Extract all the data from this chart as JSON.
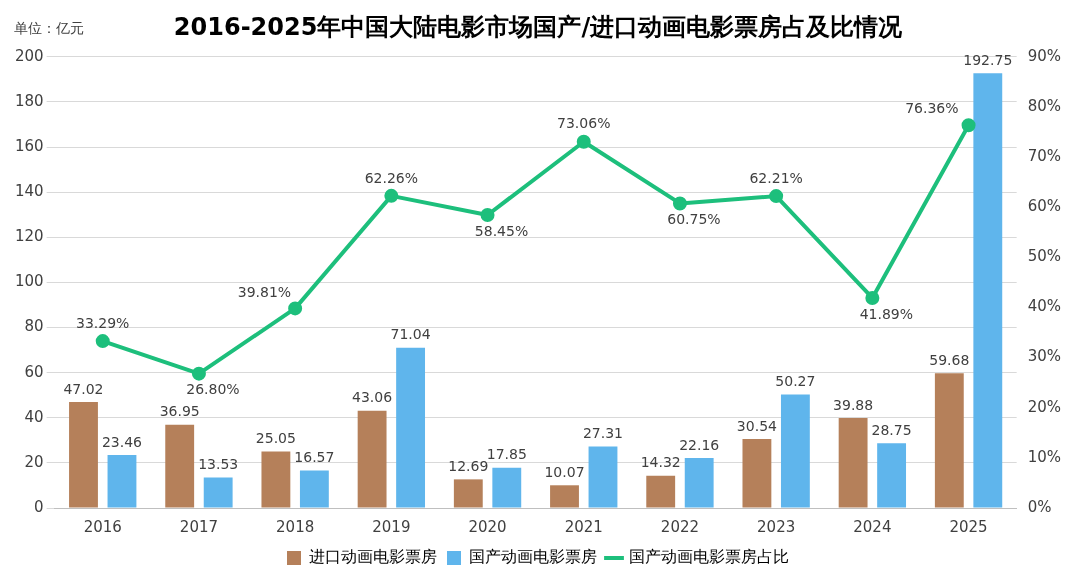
{
  "chart_data": {
    "type": "bar",
    "title": "2016-2025年中国大陆电影市场国产/进口动画电影票房占及比情况",
    "ylabel": "单位：亿元",
    "categories": [
      "2016",
      "2017",
      "2018",
      "2019",
      "2020",
      "2021",
      "2022",
      "2023",
      "2024",
      "2025"
    ],
    "series": [
      {
        "name": "进口动画电影票房",
        "color": "#b5805a",
        "values": [
          47.02,
          36.95,
          25.05,
          43.06,
          12.69,
          10.07,
          14.32,
          30.54,
          39.88,
          59.68
        ],
        "value_labels": [
          "47.02",
          "36.95",
          "25.05",
          "43.06",
          "12.69",
          "10.07",
          "14.32",
          "30.54",
          "39.88",
          "59.68"
        ]
      },
      {
        "name": "国产动画电影票房",
        "color": "#5fb5ec",
        "values": [
          23.46,
          13.53,
          16.57,
          71.04,
          17.85,
          27.31,
          22.16,
          50.27,
          28.75,
          192.75
        ],
        "value_labels": [
          "23.46",
          "13.53",
          "16.57",
          "71.04",
          "17.85",
          "27.31",
          "22.16",
          "50.27",
          "28.75",
          "192.75"
        ]
      },
      {
        "name": "国产动画电影票房占比",
        "type": "line",
        "axis": "y2",
        "color": "#1dbf7c",
        "values": [
          33.29,
          26.8,
          39.81,
          62.26,
          58.45,
          73.06,
          60.75,
          62.21,
          41.89,
          76.36
        ],
        "value_labels": [
          "33.29%",
          "26.80%",
          "39.81%",
          "62.26%",
          "58.45%",
          "73.06%",
          "60.75%",
          "62.21%",
          "41.89%",
          "76.36%"
        ]
      }
    ],
    "ylim": [
      0,
      200
    ],
    "yticks": [
      0,
      20,
      40,
      60,
      80,
      100,
      120,
      140,
      160,
      180,
      200
    ],
    "y2lim": [
      0,
      90
    ],
    "y2ticks": [
      {
        "value": 0,
        "label": "0%"
      },
      {
        "value": 10,
        "label": "10%"
      },
      {
        "value": 20,
        "label": "20%"
      },
      {
        "value": 30,
        "label": "30%"
      },
      {
        "value": 40,
        "label": "40%"
      },
      {
        "value": 50,
        "label": "50%"
      },
      {
        "value": 60,
        "label": "60%"
      },
      {
        "value": 70,
        "label": "70%"
      },
      {
        "value": 80,
        "label": "80%"
      },
      {
        "value": 90,
        "label": "90%"
      }
    ],
    "grid": "y",
    "legend": "bottom",
    "marker": "circle",
    "line_style": "solid"
  }
}
